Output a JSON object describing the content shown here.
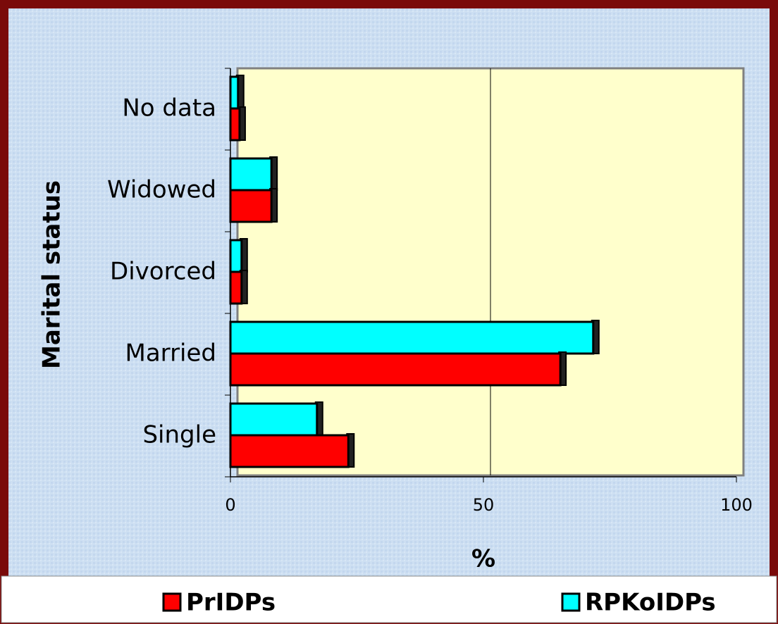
{
  "chart_data": {
    "type": "bar",
    "orientation": "horizontal",
    "x_label": "%",
    "y_label": "Marital status",
    "categories": [
      "Single",
      "Married",
      "Divorced",
      "Widowed",
      "No data"
    ],
    "series": [
      {
        "name": "PrIDPs",
        "color": "#ff0000",
        "values": [
          23.3,
          65.2,
          2.2,
          8.1,
          1.8
        ]
      },
      {
        "name": "RPKoIDPs",
        "color": "#00ffff",
        "values": [
          17.1,
          71.7,
          2.2,
          8.1,
          1.5
        ]
      }
    ],
    "xlim": [
      0,
      100
    ],
    "xticks": [
      0,
      50,
      100
    ],
    "grid": true,
    "legend": "bottom"
  }
}
